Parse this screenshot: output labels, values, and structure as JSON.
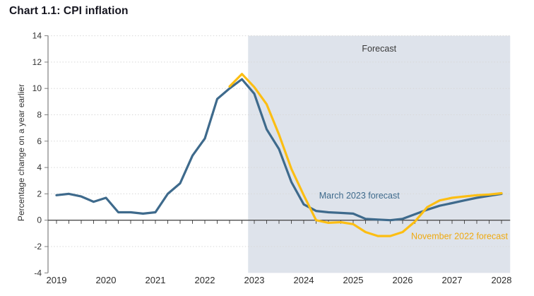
{
  "header": {
    "title": "Chart 1.1: CPI inflation"
  },
  "chart_data": {
    "type": "line",
    "title": "Chart 1.1: CPI inflation",
    "ylabel": "Percentage change on a year earlier",
    "xlabel": "",
    "ylim": [
      -4,
      14
    ],
    "ytick_step": 2,
    "grid": "horizontal-dotted",
    "legend_position": "inline-annotations",
    "x_tick_labels": [
      "2019",
      "2020",
      "2021",
      "2022",
      "2023",
      "2024",
      "2025",
      "2026",
      "2027",
      "2028"
    ],
    "categories": [
      "2019 Q1",
      "2019 Q2",
      "2019 Q3",
      "2019 Q4",
      "2020 Q1",
      "2020 Q2",
      "2020 Q3",
      "2020 Q4",
      "2021 Q1",
      "2021 Q2",
      "2021 Q3",
      "2021 Q4",
      "2022 Q1",
      "2022 Q2",
      "2022 Q3",
      "2022 Q4",
      "2023 Q1",
      "2023 Q2",
      "2023 Q3",
      "2023 Q4",
      "2024 Q1",
      "2024 Q2",
      "2024 Q3",
      "2024 Q4",
      "2025 Q1",
      "2025 Q2",
      "2025 Q3",
      "2025 Q4",
      "2026 Q1",
      "2026 Q2",
      "2026 Q3",
      "2026 Q4",
      "2027 Q1",
      "2027 Q2",
      "2027 Q3",
      "2027 Q4",
      "2028 Q1"
    ],
    "series": [
      {
        "name": "March 2023 forecast",
        "color": "#3E6A8C",
        "start_index": 0,
        "values": [
          1.9,
          2.0,
          1.8,
          1.4,
          1.7,
          0.6,
          0.6,
          0.5,
          0.6,
          2.0,
          2.8,
          4.9,
          6.2,
          9.2,
          10.0,
          10.7,
          9.6,
          6.9,
          5.4,
          2.9,
          1.2,
          0.7,
          0.6,
          0.55,
          0.5,
          0.1,
          0.05,
          0.0,
          0.1,
          0.45,
          0.8,
          1.1,
          1.3,
          1.5,
          1.7,
          1.85,
          2.0
        ]
      },
      {
        "name": "November 2022 forecast",
        "color": "#FCBE13",
        "start_index": 14,
        "values": [
          10.15,
          11.1,
          10.1,
          8.8,
          6.5,
          3.9,
          1.9,
          0.0,
          -0.2,
          -0.15,
          -0.3,
          -0.9,
          -1.2,
          -1.2,
          -0.9,
          -0.1,
          1.0,
          1.5,
          1.7,
          1.8,
          1.9,
          1.95,
          2.05
        ]
      }
    ],
    "forecast_region": {
      "label": "Forecast",
      "start_index": 15.5,
      "end_index": 36.7,
      "fill": "#DEE3EB"
    },
    "annotations": [
      {
        "text": "Forecast",
        "x_index": 26.1,
        "y_value": 12.8,
        "color": "#3A3A3A"
      },
      {
        "text": "March 2023 forecast",
        "x_index": 24.5,
        "y_value": 1.65,
        "color": "#3E6A8C"
      },
      {
        "text": "November 2022 forecast",
        "x_index": 32.6,
        "y_value": -1.45,
        "color": "#EFA90F"
      }
    ],
    "axis_colors": {
      "zero_line": "#4D4D4D",
      "axis_line": "#7F7F7F",
      "grid": "#D8D8D8",
      "tick_label": "#333333"
    }
  }
}
